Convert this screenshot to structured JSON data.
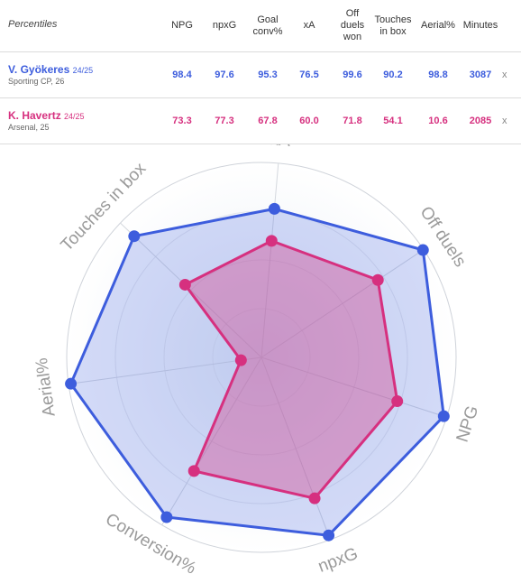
{
  "table": {
    "title": "Percentiles",
    "columns": [
      {
        "key": "npg",
        "label": "NPG"
      },
      {
        "key": "npxg",
        "label": "npxG"
      },
      {
        "key": "goal_conv",
        "label": "Goal\nconv%"
      },
      {
        "key": "xa",
        "label": "xA"
      },
      {
        "key": "off_duels",
        "label": "Off\nduels\nwon"
      },
      {
        "key": "touches",
        "label": "Touches\nin box"
      },
      {
        "key": "aerial",
        "label": "Aerial%"
      },
      {
        "key": "minutes",
        "label": "Minutes"
      }
    ],
    "players": [
      {
        "name": "V. Gyökeres",
        "season": "24/25",
        "sub": "Sporting CP, 26",
        "color": "#3d5ddd",
        "values": [
          "98.4",
          "97.6",
          "95.3",
          "76.5",
          "99.6",
          "90.2",
          "98.8",
          "3087"
        ],
        "remove": "x"
      },
      {
        "name": "K. Havertz",
        "season": "24/25",
        "sub": "Arsenal, 25",
        "color": "#d6307f",
        "values": [
          "73.3",
          "77.3",
          "67.8",
          "60.0",
          "71.8",
          "54.1",
          "10.6",
          "2085"
        ],
        "remove": "x"
      }
    ]
  },
  "chart_data": {
    "type": "radar",
    "axes": [
      "xA",
      "Off duels",
      "NPG",
      "npxG",
      "Conversion%",
      "Aerial%",
      "Touches in box"
    ],
    "range": [
      0,
      100
    ],
    "series": [
      {
        "name": "V. Gyökeres",
        "color": "#3d5ddd",
        "values": [
          76.5,
          99.6,
          98.4,
          97.6,
          95.3,
          98.8,
          90.2
        ]
      },
      {
        "name": "K. Havertz",
        "color": "#d6307f",
        "values": [
          60.0,
          71.8,
          73.3,
          77.3,
          67.8,
          10.6,
          54.1
        ]
      }
    ],
    "grid": true
  }
}
